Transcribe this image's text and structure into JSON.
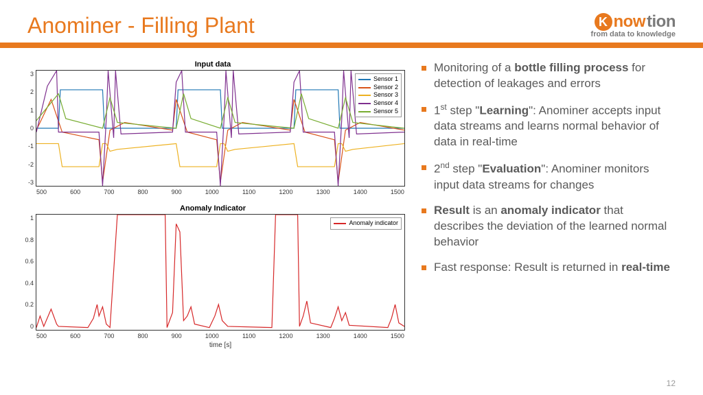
{
  "title": "Anominer - Filling Plant",
  "logo": {
    "brand_a": "now",
    "brand_b": "tion",
    "tagline": "from data to knowledge"
  },
  "page_number": "12",
  "colors": {
    "accent": "#e8791e",
    "text_grey": "#5a5a5a",
    "sensor1": "#1f77b4",
    "sensor2": "#d95319",
    "sensor3": "#edb120",
    "sensor4": "#7e2f8e",
    "sensor5": "#77ac30",
    "anomaly": "#d62728"
  },
  "chart1": {
    "title": "Input data",
    "xmin": 500,
    "xmax": 1500,
    "xtick_step": 100,
    "ymin": -3,
    "ymax": 3,
    "ytick_step": 1,
    "legend": [
      "Sensor 1",
      "Sensor 2",
      "Sensor 3",
      "Sensor 4",
      "Sensor 5"
    ],
    "legend_colors": [
      "#1f77b4",
      "#d95319",
      "#edb120",
      "#7e2f8e",
      "#77ac30"
    ],
    "series": {
      "sensor1": [
        [
          500,
          0
        ],
        [
          560,
          0
        ],
        [
          565,
          2
        ],
        [
          680,
          2
        ],
        [
          685,
          0
        ],
        [
          880,
          0
        ],
        [
          885,
          2
        ],
        [
          1000,
          2
        ],
        [
          1005,
          0
        ],
        [
          1200,
          0
        ],
        [
          1205,
          2
        ],
        [
          1320,
          2
        ],
        [
          1325,
          0
        ],
        [
          1500,
          0
        ]
      ],
      "sensor2": [
        [
          500,
          -0.1
        ],
        [
          540,
          1.5
        ],
        [
          570,
          -0.2
        ],
        [
          670,
          -0.6
        ],
        [
          680,
          -2.8
        ],
        [
          700,
          -0.1
        ],
        [
          740,
          0.3
        ],
        [
          870,
          -0.1
        ],
        [
          880,
          1.5
        ],
        [
          910,
          -0.2
        ],
        [
          990,
          -0.6
        ],
        [
          1000,
          -2.8
        ],
        [
          1020,
          -0.1
        ],
        [
          1060,
          0.3
        ],
        [
          1190,
          -0.1
        ],
        [
          1200,
          1.5
        ],
        [
          1230,
          -0.2
        ],
        [
          1310,
          -0.6
        ],
        [
          1320,
          -2.8
        ],
        [
          1340,
          -0.1
        ],
        [
          1380,
          0.3
        ],
        [
          1500,
          -0.1
        ]
      ],
      "sensor3": [
        [
          500,
          -0.8
        ],
        [
          560,
          -0.8
        ],
        [
          570,
          -2.0
        ],
        [
          670,
          -2.0
        ],
        [
          680,
          -0.8
        ],
        [
          690,
          -0.8
        ],
        [
          700,
          -1.2
        ],
        [
          720,
          -1.1
        ],
        [
          880,
          -0.8
        ],
        [
          890,
          -2.0
        ],
        [
          990,
          -2.0
        ],
        [
          1000,
          -0.8
        ],
        [
          1010,
          -0.8
        ],
        [
          1020,
          -1.2
        ],
        [
          1040,
          -1.1
        ],
        [
          1200,
          -0.8
        ],
        [
          1210,
          -2.0
        ],
        [
          1310,
          -2.0
        ],
        [
          1320,
          -0.8
        ],
        [
          1330,
          -0.8
        ],
        [
          1340,
          -1.2
        ],
        [
          1360,
          -1.1
        ],
        [
          1500,
          -0.8
        ]
      ],
      "sensor4": [
        [
          500,
          -0.2
        ],
        [
          530,
          2.2
        ],
        [
          555,
          3
        ],
        [
          560,
          -0.2
        ],
        [
          670,
          -0.2
        ],
        [
          680,
          -3
        ],
        [
          690,
          0.5
        ],
        [
          695,
          3
        ],
        [
          710,
          -0.5
        ],
        [
          715,
          3
        ],
        [
          730,
          -0.3
        ],
        [
          870,
          -0.2
        ],
        [
          880,
          2.4
        ],
        [
          895,
          3
        ],
        [
          905,
          -0.2
        ],
        [
          990,
          -0.2
        ],
        [
          1000,
          -3
        ],
        [
          1010,
          0.5
        ],
        [
          1015,
          3
        ],
        [
          1030,
          -0.5
        ],
        [
          1035,
          3
        ],
        [
          1050,
          -0.3
        ],
        [
          1190,
          -0.2
        ],
        [
          1200,
          2.4
        ],
        [
          1215,
          3
        ],
        [
          1225,
          -0.2
        ],
        [
          1310,
          -0.2
        ],
        [
          1320,
          -3
        ],
        [
          1330,
          0.5
        ],
        [
          1335,
          3
        ],
        [
          1350,
          -0.5
        ],
        [
          1355,
          3
        ],
        [
          1370,
          -0.3
        ],
        [
          1500,
          -0.2
        ]
      ],
      "sensor5": [
        [
          500,
          0.4
        ],
        [
          560,
          1.8
        ],
        [
          580,
          0.5
        ],
        [
          680,
          0.0
        ],
        [
          700,
          1.6
        ],
        [
          720,
          0.3
        ],
        [
          880,
          0.0
        ],
        [
          900,
          1.8
        ],
        [
          920,
          0.5
        ],
        [
          1000,
          0.0
        ],
        [
          1020,
          1.6
        ],
        [
          1040,
          0.3
        ],
        [
          1200,
          0.0
        ],
        [
          1220,
          1.8
        ],
        [
          1240,
          0.5
        ],
        [
          1320,
          0.0
        ],
        [
          1340,
          1.6
        ],
        [
          1360,
          0.3
        ],
        [
          1500,
          0.0
        ]
      ]
    }
  },
  "chart2": {
    "title": "Anomaly Indicator",
    "xlabel": "time [s]",
    "xmin": 500,
    "xmax": 1500,
    "xtick_step": 100,
    "ymin": 0,
    "ymax": 1,
    "ytick_step": 0.2,
    "legend": [
      "Anomaly indicator"
    ],
    "legend_colors": [
      "#d62728"
    ],
    "series": {
      "anomaly": [
        [
          500,
          0.02
        ],
        [
          510,
          0.12
        ],
        [
          520,
          0.03
        ],
        [
          540,
          0.18
        ],
        [
          555,
          0.05
        ],
        [
          560,
          0.03
        ],
        [
          640,
          0.02
        ],
        [
          655,
          0.1
        ],
        [
          665,
          0.22
        ],
        [
          670,
          0.12
        ],
        [
          680,
          0.2
        ],
        [
          690,
          0.05
        ],
        [
          700,
          0.02
        ],
        [
          720,
          1.0
        ],
        [
          850,
          1.0
        ],
        [
          855,
          0.02
        ],
        [
          870,
          0.15
        ],
        [
          880,
          0.92
        ],
        [
          890,
          0.85
        ],
        [
          900,
          0.08
        ],
        [
          910,
          0.12
        ],
        [
          920,
          0.2
        ],
        [
          930,
          0.05
        ],
        [
          970,
          0.02
        ],
        [
          985,
          0.12
        ],
        [
          995,
          0.22
        ],
        [
          1005,
          0.08
        ],
        [
          1020,
          0.03
        ],
        [
          1140,
          0.02
        ],
        [
          1150,
          1.0
        ],
        [
          1210,
          1.0
        ],
        [
          1215,
          0.03
        ],
        [
          1225,
          0.12
        ],
        [
          1235,
          0.25
        ],
        [
          1245,
          0.06
        ],
        [
          1300,
          0.02
        ],
        [
          1310,
          0.1
        ],
        [
          1320,
          0.2
        ],
        [
          1330,
          0.08
        ],
        [
          1340,
          0.15
        ],
        [
          1350,
          0.04
        ],
        [
          1455,
          0.02
        ],
        [
          1465,
          0.1
        ],
        [
          1475,
          0.22
        ],
        [
          1485,
          0.06
        ],
        [
          1500,
          0.03
        ]
      ]
    }
  },
  "bullets": [
    "Monitoring of a <b>bottle filling process</b> for detection of leakages and errors",
    "1<sup>st</sup> step \"<b>Learning</b>\": Anominer accepts input data streams and learns normal behavior of data in real-time",
    "2<sup>nd</sup> step \"<b>Evaluation</b>\": Anominer monitors input data streams for changes",
    "<b>Result</b> is an <b>anomaly indicator</b> that describes the deviation of the learned normal behavior",
    "Fast response: Result is returned in <b>real-time</b>"
  ]
}
